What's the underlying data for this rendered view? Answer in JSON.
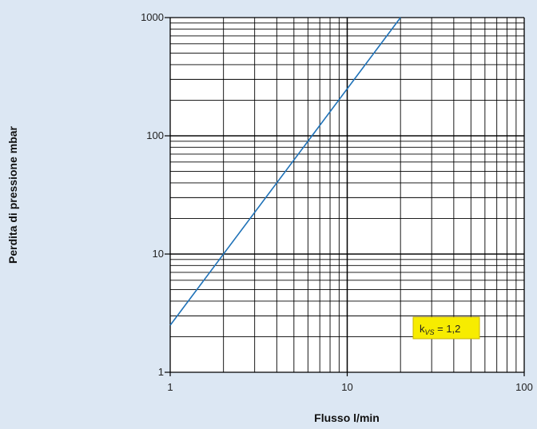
{
  "chart_data": {
    "type": "line",
    "x_scale": "log",
    "y_scale": "log",
    "xlim": [
      1,
      100
    ],
    "ylim": [
      1,
      1000
    ],
    "x_ticks": [
      "1",
      "10",
      "100"
    ],
    "y_ticks": [
      "1",
      "10",
      "100",
      "1000"
    ],
    "xlabel": "Flusso l/min",
    "ylabel": "Perdita di pressione mbar",
    "grid": true,
    "series": [
      {
        "x": [
          1,
          20
        ],
        "y": [
          2.5,
          1000
        ],
        "color": "#1f72b8"
      }
    ],
    "annotation": {
      "base": "k",
      "subscript": "VS",
      "rest": " = 1,2",
      "position": "lower-right",
      "background": "#f7ec00",
      "border": "#c9b400"
    }
  }
}
